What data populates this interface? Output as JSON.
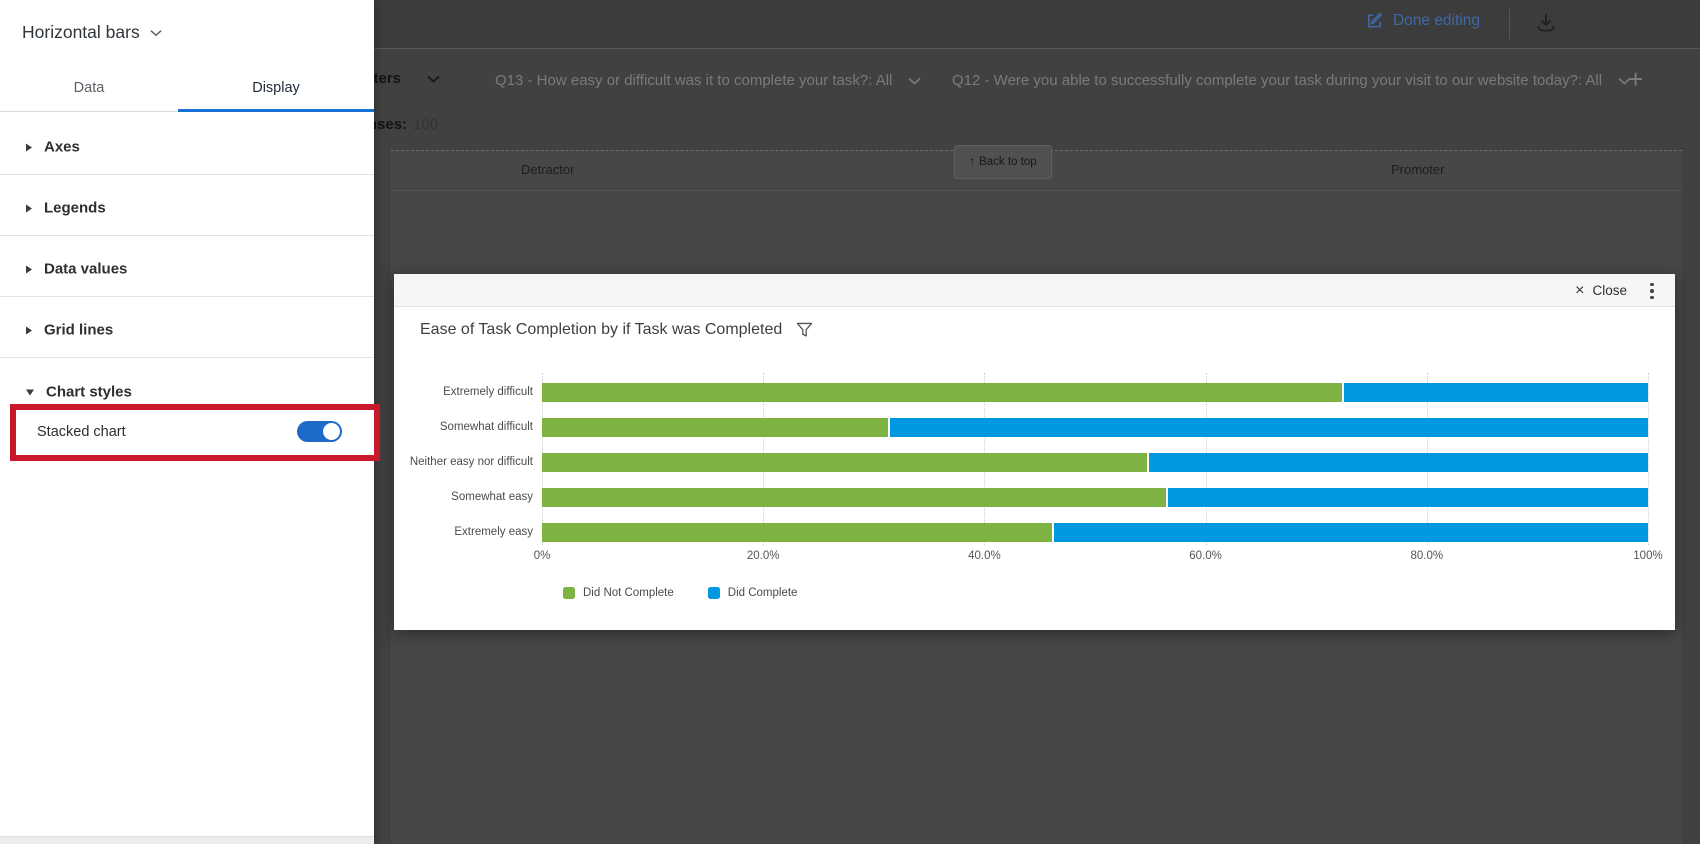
{
  "topbar": {
    "done_editing": "Done editing"
  },
  "filter_bar": {
    "filters_label": "Filters",
    "responses_label": "Responses:",
    "responses_value": "100",
    "q13": "Q13 - How easy or difficult was it to complete your task?: All",
    "q12": "Q12 - Were you able to successfully complete your task during your visit to our website today?: All",
    "add_filter": "+"
  },
  "background": {
    "column_left": "Detractor",
    "column_right": "Promoter",
    "back_to_top": "Back to top",
    "back_to_top_arrow": "↑"
  },
  "sidebar": {
    "title": "Horizontal bars",
    "tabs": [
      {
        "label": "Data",
        "active": false
      },
      {
        "label": "Display",
        "active": true
      }
    ],
    "sections": [
      {
        "label": "Axes",
        "expanded": false
      },
      {
        "label": "Legends",
        "expanded": false
      },
      {
        "label": "Data values",
        "expanded": false
      },
      {
        "label": "Grid lines",
        "expanded": false
      },
      {
        "label": "Chart styles",
        "expanded": true
      }
    ],
    "stacked_chart": {
      "label": "Stacked chart",
      "enabled": true
    }
  },
  "modal": {
    "close_label": "Close",
    "close_icon": "×",
    "title": "Ease of Task Completion by if Task was Completed"
  },
  "chart_data": {
    "type": "bar",
    "orientation": "horizontal",
    "stacked": true,
    "title": "Ease of Task Completion by if Task was Completed",
    "categories": [
      "Extremely difficult",
      "Somewhat difficult",
      "Neither easy nor difficult",
      "Somewhat easy",
      "Extremely easy"
    ],
    "series": [
      {
        "name": "Did Not Complete",
        "color": "#7CB342",
        "values": [
          72.4,
          31.4,
          54.8,
          56.5,
          46.2
        ]
      },
      {
        "name": "Did Complete",
        "color": "#0099E0",
        "values": [
          27.6,
          68.6,
          45.2,
          43.5,
          53.8
        ]
      }
    ],
    "x_ticks": [
      {
        "label": "0%",
        "value": 0
      },
      {
        "label": "20.0%",
        "value": 20
      },
      {
        "label": "40.0%",
        "value": 40
      },
      {
        "label": "60.0%",
        "value": 60
      },
      {
        "label": "80.0%",
        "value": 80
      },
      {
        "label": "100%",
        "value": 100
      }
    ],
    "xlim": [
      0,
      100
    ],
    "grid": "dotted-vertical",
    "legend_position": "bottom"
  },
  "colors": {
    "accent_blue": "#1670d8",
    "toggle_blue": "#1e6ac8",
    "annotation_red": "#c9182b",
    "series_green": "#7CB342",
    "series_blue": "#0099E0",
    "done_editing_blue": "#3c6aa8"
  }
}
